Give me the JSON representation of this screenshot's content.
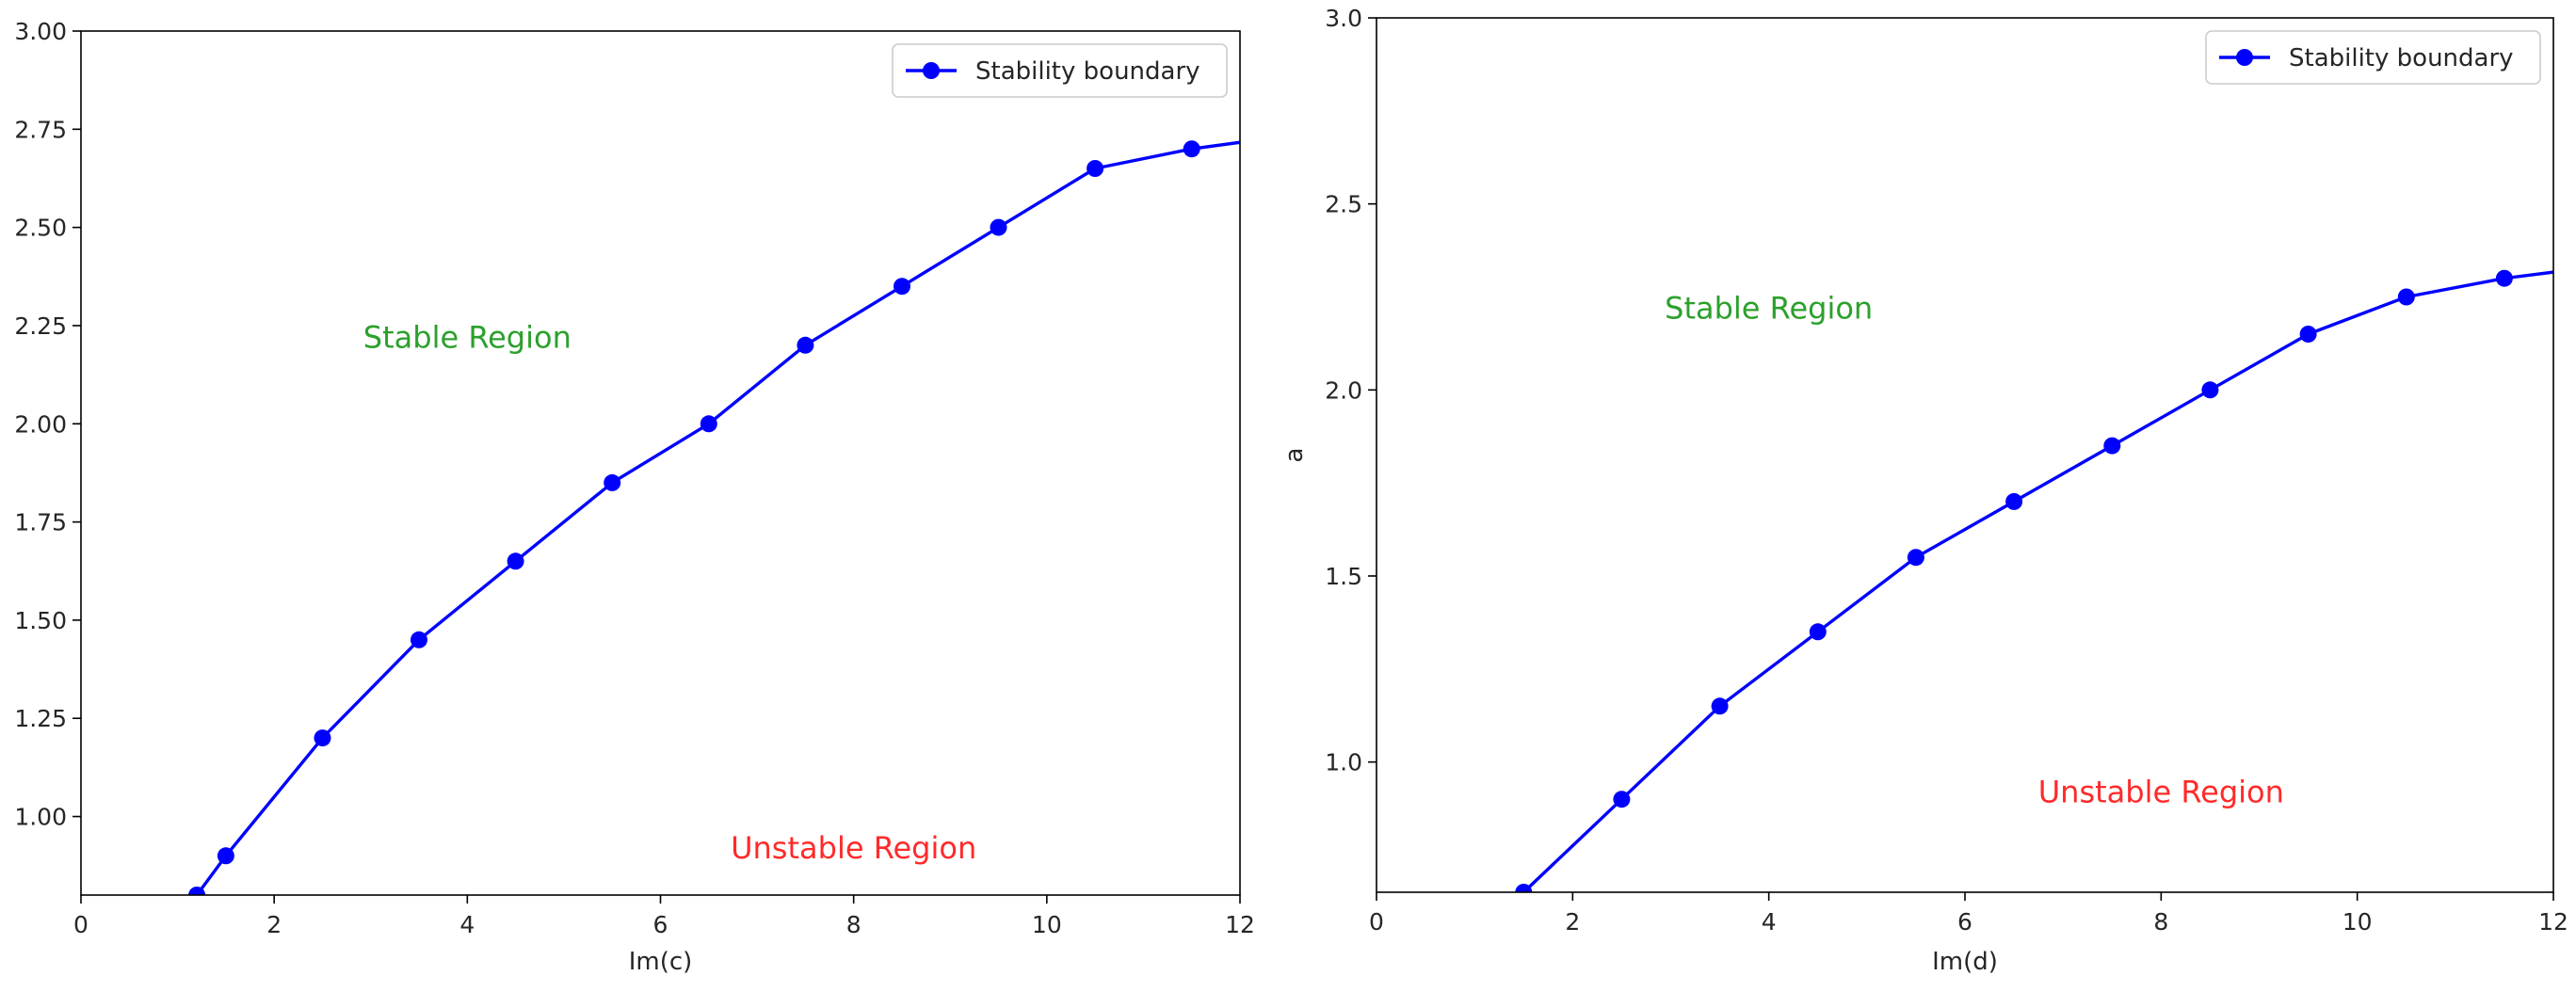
{
  "chart_data": [
    {
      "type": "line",
      "title": "",
      "xlabel": "Im(c)",
      "ylabel": "",
      "xlim": [
        0,
        12
      ],
      "ylim": [
        0.8,
        3.0
      ],
      "xticks": [
        0,
        2,
        4,
        6,
        8,
        10,
        12
      ],
      "yticks": [
        1.0,
        1.25,
        1.5,
        1.75,
        2.0,
        2.25,
        2.5,
        2.75,
        3.0
      ],
      "ytick_labels": [
        "1.00",
        "1.25",
        "1.50",
        "1.75",
        "2.00",
        "2.25",
        "2.50",
        "2.75",
        "3.00"
      ],
      "xtick_labels": [
        "0",
        "2",
        "4",
        "6",
        "8",
        "10",
        "12"
      ],
      "grid": false,
      "legend_position": "top-right",
      "series": [
        {
          "name": "Stability boundary",
          "color": "#0000ff",
          "marker": "circle",
          "x": [
            1.0,
            1.2,
            1.5,
            2.5,
            3.5,
            4.5,
            5.5,
            6.5,
            7.5,
            8.5,
            9.5,
            10.5,
            11.5,
            13.0
          ],
          "y": [
            0.75,
            0.8,
            0.9,
            1.2,
            1.45,
            1.65,
            1.85,
            2.0,
            2.2,
            2.35,
            2.5,
            2.65,
            2.7,
            2.75
          ],
          "marker_x": [
            1.2,
            1.5,
            2.5,
            3.5,
            4.5,
            5.5,
            6.5,
            7.5,
            8.5,
            9.5,
            10.5,
            11.5
          ]
        }
      ],
      "annotations": [
        {
          "text": "Stable Region",
          "x": 4.0,
          "y": 2.22,
          "color": "#2ca02c"
        },
        {
          "text": "Unstable Region",
          "x": 8.0,
          "y": 0.92,
          "color": "#ff2a2a"
        }
      ]
    },
    {
      "type": "line",
      "title": "",
      "xlabel": "Im(d)",
      "ylabel": "a",
      "xlim": [
        0,
        12
      ],
      "ylim": [
        0.65,
        3.0
      ],
      "xticks": [
        0,
        2,
        4,
        6,
        8,
        10,
        12
      ],
      "yticks": [
        1.0,
        1.5,
        2.0,
        2.5,
        3.0
      ],
      "ytick_labels": [
        "1.0",
        "1.5",
        "2.0",
        "2.5",
        "3.0"
      ],
      "xtick_labels": [
        "0",
        "2",
        "4",
        "6",
        "8",
        "10",
        "12"
      ],
      "grid": false,
      "legend_position": "top-right",
      "series": [
        {
          "name": "Stability boundary",
          "color": "#0000ff",
          "marker": "circle",
          "x": [
            1.0,
            1.5,
            2.5,
            3.5,
            4.5,
            5.5,
            6.5,
            7.5,
            8.5,
            9.5,
            10.5,
            11.5,
            13.0
          ],
          "y": [
            0.55,
            0.65,
            0.9,
            1.15,
            1.35,
            1.55,
            1.7,
            1.85,
            2.0,
            2.15,
            2.25,
            2.3,
            2.35
          ],
          "marker_x": [
            1.5,
            2.5,
            3.5,
            4.5,
            5.5,
            6.5,
            7.5,
            8.5,
            9.5,
            10.5,
            11.5
          ]
        }
      ],
      "annotations": [
        {
          "text": "Stable Region",
          "x": 4.0,
          "y": 2.22,
          "color": "#2ca02c"
        },
        {
          "text": "Unstable Region",
          "x": 8.0,
          "y": 0.92,
          "color": "#ff2a2a"
        }
      ]
    }
  ]
}
